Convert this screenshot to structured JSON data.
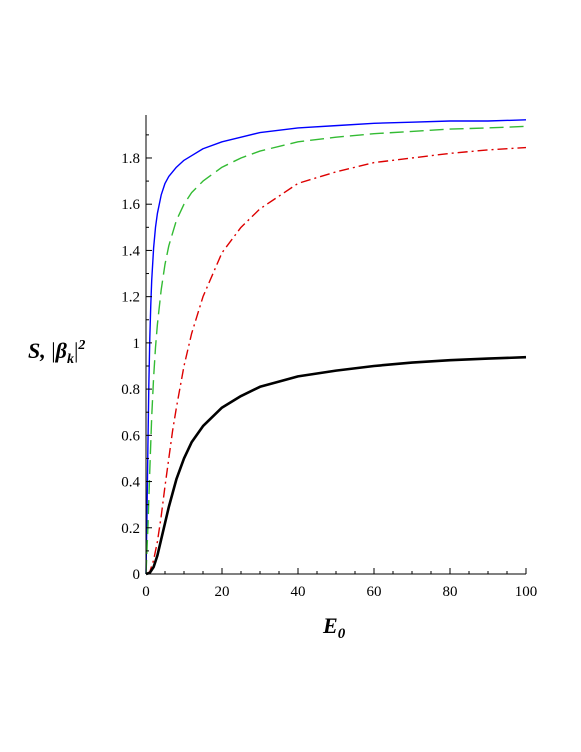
{
  "chart_data": {
    "type": "line",
    "xlabel": "E",
    "xlabel_sub": "0",
    "ylabel_parts": {
      "s": "S,",
      "beta": "β",
      "sub": "k",
      "sup": "2"
    },
    "xlim": [
      0,
      100
    ],
    "ylim": [
      0,
      1.96
    ],
    "x_ticks": [
      0,
      20,
      40,
      60,
      80,
      100
    ],
    "x_tick_labels": [
      "0",
      "20",
      "40",
      "60",
      "80",
      "100"
    ],
    "y_ticks": [
      0,
      0.2,
      0.4,
      0.6,
      0.8,
      1,
      1.2,
      1.4,
      1.6,
      1.8
    ],
    "y_tick_labels": [
      "0",
      "0.2",
      "0.4",
      "0.6",
      "0.8",
      "1",
      "1.2",
      "1.4",
      "1.6",
      "1.8"
    ],
    "grid": false,
    "legend": "none",
    "series": [
      {
        "color": "#0000ff",
        "style": "solid",
        "x": [
          0,
          0.25,
          0.5,
          0.75,
          1,
          1.25,
          1.5,
          2,
          2.5,
          3,
          4,
          5,
          6,
          8,
          10,
          12,
          15,
          20,
          25,
          30,
          40,
          50,
          60,
          70,
          80,
          90,
          100
        ],
        "y": [
          0,
          0.25,
          0.55,
          0.82,
          1.02,
          1.16,
          1.27,
          1.41,
          1.5,
          1.56,
          1.64,
          1.69,
          1.72,
          1.76,
          1.79,
          1.81,
          1.84,
          1.87,
          1.89,
          1.91,
          1.93,
          1.94,
          1.95,
          1.955,
          1.96,
          1.96,
          1.965
        ]
      },
      {
        "color": "#33bb33",
        "style": "dashed",
        "x": [
          0,
          0.5,
          1,
          1.5,
          2,
          2.5,
          3,
          4,
          5,
          6,
          8,
          10,
          12,
          15,
          20,
          25,
          30,
          40,
          50,
          60,
          70,
          80,
          90,
          100
        ],
        "y": [
          0,
          0.2,
          0.45,
          0.68,
          0.85,
          0.98,
          1.08,
          1.23,
          1.34,
          1.42,
          1.53,
          1.6,
          1.65,
          1.7,
          1.76,
          1.8,
          1.83,
          1.87,
          1.89,
          1.905,
          1.915,
          1.925,
          1.93,
          1.937
        ]
      },
      {
        "color": "#dd0000",
        "style": "dashdot",
        "x": [
          0,
          1,
          2,
          3,
          4,
          5,
          6,
          7,
          8,
          10,
          12,
          15,
          20,
          25,
          30,
          40,
          50,
          60,
          70,
          80,
          90,
          100
        ],
        "y": [
          0,
          0.01,
          0.06,
          0.14,
          0.25,
          0.38,
          0.5,
          0.62,
          0.72,
          0.9,
          1.04,
          1.2,
          1.39,
          1.5,
          1.58,
          1.69,
          1.74,
          1.78,
          1.8,
          1.82,
          1.835,
          1.845
        ]
      },
      {
        "color": "#000000",
        "style": "solid-thick",
        "x": [
          0,
          1,
          2,
          3,
          4,
          5,
          6,
          7,
          8,
          10,
          12,
          15,
          20,
          25,
          30,
          40,
          50,
          60,
          70,
          80,
          90,
          100
        ],
        "y": [
          0,
          0.005,
          0.03,
          0.08,
          0.15,
          0.22,
          0.29,
          0.35,
          0.41,
          0.5,
          0.57,
          0.64,
          0.72,
          0.77,
          0.81,
          0.855,
          0.88,
          0.9,
          0.915,
          0.925,
          0.932,
          0.938
        ]
      }
    ]
  }
}
